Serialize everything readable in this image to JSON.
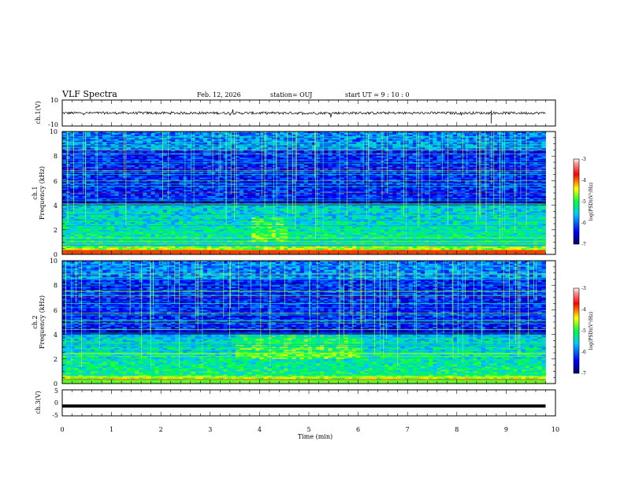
{
  "header": {
    "title": "VLF Spectra",
    "date": "Feb. 12, 2026",
    "station": "station= OUJ",
    "start": "start  UT  =   9  : 10 : 0"
  },
  "colors": {
    "background": "#ffffff",
    "axis": "#000000",
    "trace": "#000000"
  },
  "chart_data": [
    {
      "type": "line",
      "panel": "ch1-waveform",
      "ylabel": "ch.1(V)",
      "ylim": [
        -10,
        10
      ],
      "yticks": [
        "10",
        "-10"
      ],
      "xlim": [
        0,
        10
      ],
      "baseline": 0,
      "notes": "dense noisy trace around ~0 V"
    },
    {
      "type": "heatmap",
      "panel": "ch1-spectrogram",
      "ylabel": [
        "ch.1",
        "Frequency  (kHz)"
      ],
      "ylim": [
        0,
        10
      ],
      "yticks": [
        "0",
        "2",
        "4",
        "6",
        "8",
        "10"
      ],
      "xlim": [
        0,
        9.8
      ],
      "colorbar": {
        "label": "log(PSD)(V²/Hz)",
        "range": [
          -7,
          -3
        ],
        "ticks": [
          "-3",
          "-4",
          "-5",
          "-6",
          "-7"
        ]
      }
    },
    {
      "type": "heatmap",
      "panel": "ch2-spectrogram",
      "ylabel": [
        "ch.2",
        "Frequency  (kHz)"
      ],
      "ylim": [
        0,
        10
      ],
      "yticks": [
        "0",
        "2",
        "4",
        "6",
        "8",
        "10"
      ],
      "xlim": [
        0,
        9.8
      ],
      "colorbar": {
        "label": "log(PSD)(V²/Hz)",
        "range": [
          -7,
          -3
        ],
        "ticks": [
          "-3",
          "-4",
          "-5",
          "-6",
          "-7"
        ]
      }
    },
    {
      "type": "line",
      "panel": "ch3-waveform",
      "ylabel": "ch.3(V)",
      "ylim": [
        -5,
        5
      ],
      "yticks": [
        "5",
        "0",
        "-5"
      ],
      "xlim": [
        0,
        10
      ],
      "baseline": -1.2,
      "notes": "thick flat trace slightly below 0 V"
    }
  ],
  "xaxis": {
    "label": "Time  (min)",
    "ticks": [
      "0",
      "1",
      "2",
      "3",
      "4",
      "5",
      "6",
      "7",
      "8",
      "9",
      "10"
    ],
    "range": [
      0,
      10
    ]
  }
}
